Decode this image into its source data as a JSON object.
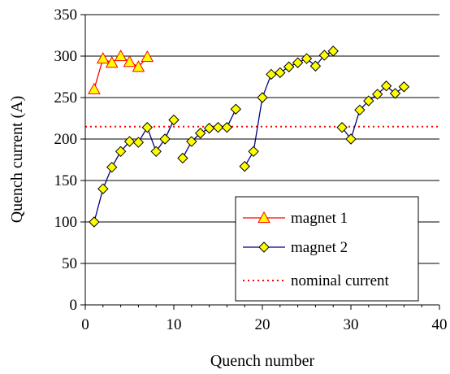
{
  "chart_data": {
    "type": "line",
    "title": "",
    "xlabel": "Quench number",
    "ylabel": "Quench current (A)",
    "xlim": [
      0,
      40
    ],
    "ylim": [
      0,
      350
    ],
    "xticks": [
      0,
      10,
      20,
      30,
      40
    ],
    "yticks": [
      0,
      50,
      100,
      150,
      200,
      250,
      300,
      350
    ],
    "grid": "horizontal",
    "legend_position": "bottom-right",
    "series": [
      {
        "name": "magnet 1",
        "marker": "triangle",
        "line_color": "#ff0000",
        "marker_fill": "#ffff00",
        "marker_edge": "#ff0000",
        "segments": [
          [
            [
              1,
              260
            ],
            [
              2,
              297
            ],
            [
              3,
              292
            ],
            [
              4,
              300
            ],
            [
              5,
              293
            ],
            [
              6,
              287
            ],
            [
              7,
              299
            ]
          ]
        ]
      },
      {
        "name": "magnet 2",
        "marker": "diamond",
        "line_color": "#000080",
        "marker_fill": "#ffff00",
        "marker_edge": "#000000",
        "segments": [
          [
            [
              1,
              100
            ],
            [
              2,
              140
            ],
            [
              3,
              166
            ],
            [
              4,
              185
            ],
            [
              5,
              197
            ],
            [
              6,
              196
            ],
            [
              7,
              214
            ],
            [
              8,
              185
            ],
            [
              9,
              200
            ],
            [
              10,
              223
            ]
          ],
          [
            [
              11,
              177
            ],
            [
              12,
              197
            ],
            [
              13,
              207
            ],
            [
              14,
              213
            ],
            [
              15,
              214
            ],
            [
              16,
              214
            ],
            [
              17,
              236
            ]
          ],
          [
            [
              18,
              167
            ],
            [
              19,
              185
            ],
            [
              20,
              250
            ],
            [
              21,
              278
            ],
            [
              22,
              280
            ],
            [
              23,
              287
            ],
            [
              24,
              292
            ],
            [
              25,
              297
            ],
            [
              26,
              288
            ],
            [
              27,
              301
            ],
            [
              28,
              306
            ]
          ],
          [
            [
              29,
              214
            ],
            [
              30,
              200
            ],
            [
              31,
              235
            ],
            [
              32,
              246
            ],
            [
              33,
              254
            ],
            [
              34,
              264
            ],
            [
              35,
              255
            ],
            [
              36,
              263
            ]
          ]
        ]
      },
      {
        "name": "nominal current",
        "style": "dotted",
        "line_color": "#ff0000",
        "y": 215
      }
    ]
  }
}
